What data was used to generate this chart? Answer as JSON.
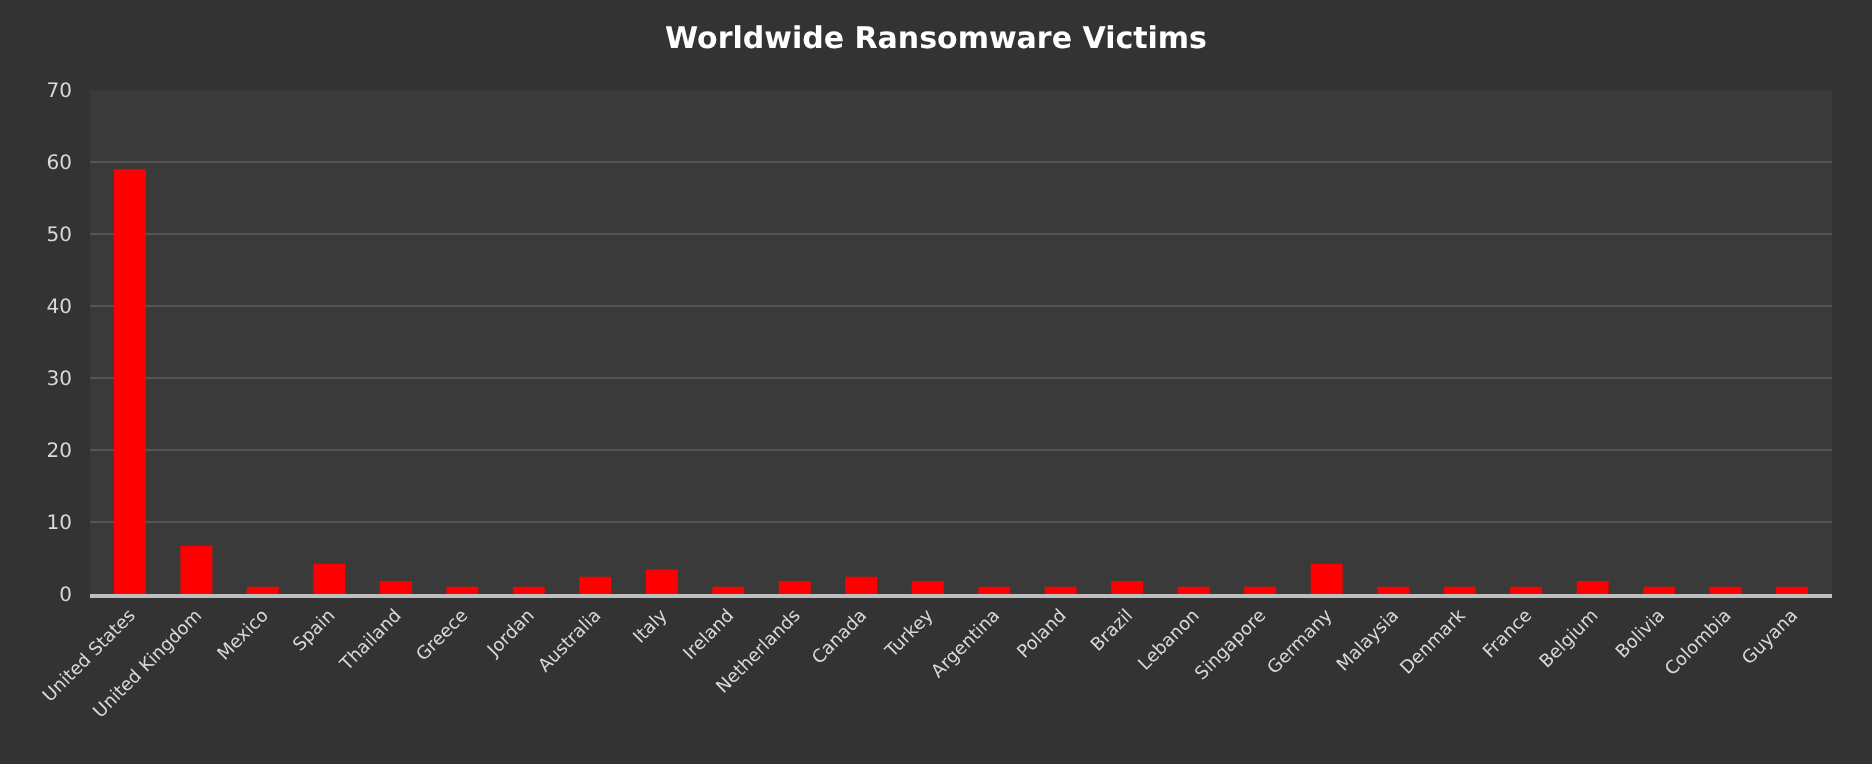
{
  "chart_data": {
    "type": "bar",
    "title": "Worldwide Ransomware Victims",
    "categories": [
      "United States",
      "United Kingdom",
      "Mexico",
      "Spain",
      "Thailand",
      "Greece",
      "Jordan",
      "Australia",
      "Italy",
      "Ireland",
      "Netherlands",
      "Canada",
      "Turkey",
      "Argentina",
      "Poland",
      "Brazil",
      "Lebanon",
      "Singapore",
      "Germany",
      "Malaysia",
      "Denmark",
      "France",
      "Belgium",
      "Bolivia",
      "Colombia",
      "Guyana"
    ],
    "values": [
      59,
      6.7,
      1,
      4.2,
      1.8,
      1,
      1,
      2.4,
      3.4,
      1,
      1.8,
      2.4,
      1.8,
      1,
      1,
      1.8,
      1,
      1,
      4.2,
      1,
      1,
      1,
      1.8,
      1,
      1,
      1
    ],
    "color": "#ff0000",
    "ylim": [
      0,
      70
    ],
    "yticks": [
      0,
      10,
      20,
      30,
      40,
      50,
      60,
      70
    ],
    "grid": "y"
  }
}
